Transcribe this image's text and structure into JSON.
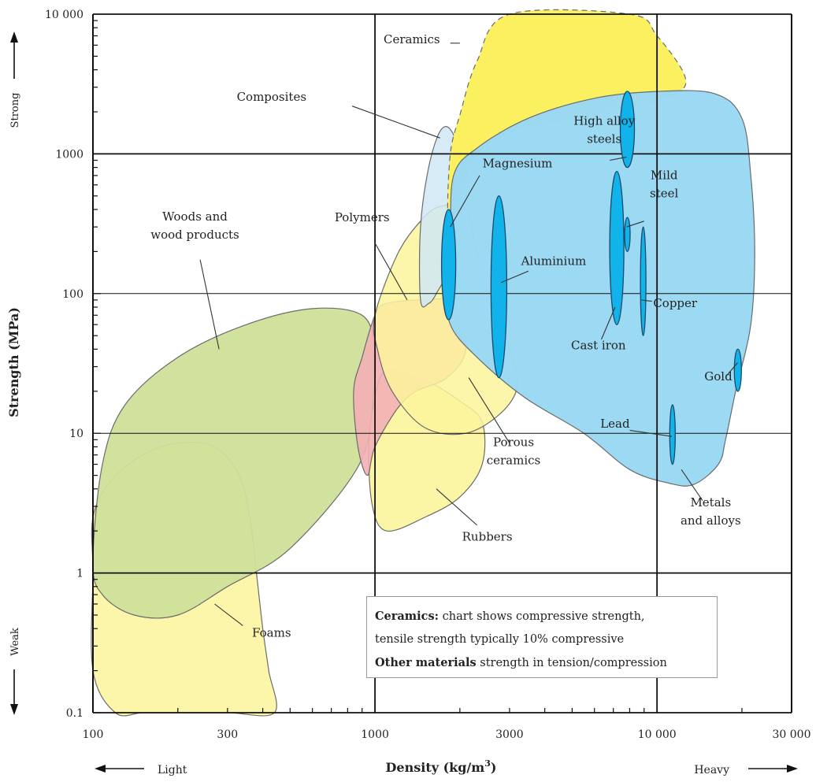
{
  "chart_data": {
    "type": "scatter",
    "title": "",
    "xlabel": "Density (kg/m³)",
    "ylabel": "Strength (MPa)",
    "x_scale": "log",
    "y_scale": "log",
    "xlim": [
      100,
      30000
    ],
    "ylim": [
      0.1,
      10000
    ],
    "grid": true,
    "x_tick_labels": [
      {
        "value": 100,
        "label": "100"
      },
      {
        "value": 300,
        "label": "300"
      },
      {
        "value": 1000,
        "label": "1000"
      },
      {
        "value": 3000,
        "label": "3000"
      },
      {
        "value": 10000,
        "label": "10 000"
      },
      {
        "value": 30000,
        "label": "30 000"
      }
    ],
    "y_tick_labels": [
      {
        "value": 0.1,
        "label": "0.1"
      },
      {
        "value": 1,
        "label": "1"
      },
      {
        "value": 10,
        "label": "10"
      },
      {
        "value": 100,
        "label": "100"
      },
      {
        "value": 1000,
        "label": "1000"
      },
      {
        "value": 10000,
        "label": "10 000"
      }
    ],
    "y_direction_labels": {
      "high": "Strong",
      "low": "Weak"
    },
    "x_direction_labels": {
      "low": "Light",
      "high": "Heavy"
    },
    "material_families": [
      {
        "name": "Foams",
        "label": "Foams",
        "color": "#fbf49c",
        "density_range": [
          100,
          420
        ],
        "strength_range": [
          0.1,
          8
        ]
      },
      {
        "name": "Woods and wood products",
        "label": "Woods and\nwood products",
        "color": "#cfe09a",
        "density_range": [
          100,
          1000
        ],
        "strength_range": [
          0.3,
          80
        ]
      },
      {
        "name": "Rubbers",
        "label": "Rubbers",
        "color": "#fbf49c",
        "density_range": [
          1000,
          2400
        ],
        "strength_range": [
          2,
          30
        ]
      },
      {
        "name": "Polymers",
        "label": "Polymers",
        "color": "#f3b0b5",
        "density_range": [
          900,
          2000
        ],
        "strength_range": [
          5,
          80
        ]
      },
      {
        "name": "Porous ceramics",
        "label": "Porous\nceramics",
        "color": "#fbf49c",
        "density_range": [
          1000,
          3000
        ],
        "strength_range": [
          10,
          400
        ]
      },
      {
        "name": "Composites",
        "label": "Composites",
        "color": "#cfe8f5",
        "density_range": [
          1400,
          2000
        ],
        "strength_range": [
          50,
          1500
        ]
      },
      {
        "name": "Ceramics",
        "label": "Ceramics",
        "color": "#faf060",
        "density_range": [
          2000,
          13000
        ],
        "strength_range": [
          500,
          10000
        ]
      },
      {
        "name": "Metals and alloys",
        "label": "Metals\nand alloys",
        "color": "#9ad8f3",
        "density_range": [
          1800,
          22000
        ],
        "strength_range": [
          4,
          3000
        ]
      }
    ],
    "metals": [
      {
        "name": "Magnesium",
        "label": "Magnesium",
        "density_range": [
          1800,
          1850
        ],
        "strength_range": [
          65,
          400
        ]
      },
      {
        "name": "Aluminium",
        "label": "Aluminium",
        "density_range": [
          2700,
          2800
        ],
        "strength_range": [
          25,
          500
        ]
      },
      {
        "name": "High alloy steels",
        "label": "High alloy\nsteels",
        "density_range": [
          7800,
          7900
        ],
        "strength_range": [
          800,
          2800
        ]
      },
      {
        "name": "Cast iron",
        "label": "Cast iron",
        "density_range": [
          7100,
          7300
        ],
        "strength_range": [
          60,
          750
        ]
      },
      {
        "name": "Mild steel",
        "label": "Mild\nsteel",
        "density_range": [
          7800,
          7900
        ],
        "strength_range": [
          200,
          350
        ]
      },
      {
        "name": "Copper",
        "label": "Copper",
        "density_range": [
          8900,
          8960
        ],
        "strength_range": [
          50,
          300
        ]
      },
      {
        "name": "Lead",
        "label": "Lead",
        "density_range": [
          11300,
          11400
        ],
        "strength_range": [
          6,
          16
        ]
      },
      {
        "name": "Gold",
        "label": "Gold",
        "density_range": [
          19300,
          19400
        ],
        "strength_range": [
          20,
          40
        ]
      }
    ],
    "note": {
      "line1_bold": "Ceramics:",
      "line1_rest": " chart shows compressive strength,",
      "line2": "tensile strength typically 10% compressive",
      "line3_bold": "Other materials",
      "line3_rest": " strength in tension/compression"
    },
    "colors": {
      "metal_band": "#12b3ea",
      "outline": "#6b6b6b",
      "grid_major": "#111111"
    }
  }
}
